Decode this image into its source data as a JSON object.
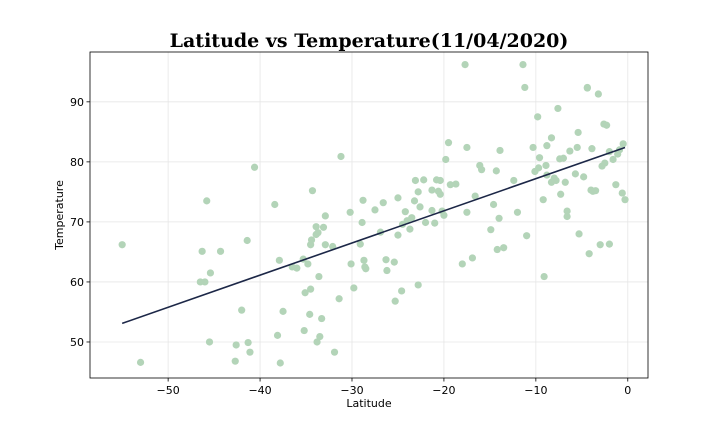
{
  "chart_data": {
    "type": "scatter",
    "title": "Latitude vs Temperature(11/04/2020)",
    "xlabel": "Latitude",
    "ylabel": "Temperature",
    "xlim": [
      -58.5,
      2.2
    ],
    "ylim": [
      44,
      98.3
    ],
    "xticks": [
      -50,
      -40,
      -30,
      -20,
      -10,
      0
    ],
    "yticks": [
      50,
      60,
      70,
      80,
      90
    ],
    "grid": true,
    "colors": {
      "points": "#b3d4b8",
      "regression": "#1c2747",
      "grid": "#e6e6e6"
    },
    "points": [
      [
        -55,
        66.2
      ],
      [
        -53,
        46.6
      ],
      [
        -46,
        60
      ],
      [
        -45.8,
        73.5
      ],
      [
        -46.3,
        65.1
      ],
      [
        -45.4,
        61.5
      ],
      [
        -45.5,
        50
      ],
      [
        -44.3,
        65.1
      ],
      [
        -46.5,
        60
      ],
      [
        -42.6,
        49.5
      ],
      [
        -42.7,
        46.8
      ],
      [
        -42,
        55.3
      ],
      [
        -41.4,
        66.9
      ],
      [
        -41.1,
        48.3
      ],
      [
        -41.3,
        49.9
      ],
      [
        -40.6,
        79.1
      ],
      [
        -38.4,
        72.9
      ],
      [
        -38.1,
        51.1
      ],
      [
        -37.8,
        46.5
      ],
      [
        -37.5,
        55.1
      ],
      [
        -37.9,
        63.6
      ],
      [
        -36.5,
        62.5
      ],
      [
        -36,
        62.3
      ],
      [
        -35.3,
        63.8
      ],
      [
        -35.1,
        58.2
      ],
      [
        -35.2,
        51.9
      ],
      [
        -34.8,
        63
      ],
      [
        -34.6,
        54.6
      ],
      [
        -34.5,
        58.8
      ],
      [
        -34.5,
        66.2
      ],
      [
        -34.3,
        75.2
      ],
      [
        -34.4,
        67
      ],
      [
        -33.9,
        67.9
      ],
      [
        -33.9,
        69.2
      ],
      [
        -33.7,
        68.2
      ],
      [
        -33.6,
        60.9
      ],
      [
        -33.8,
        50
      ],
      [
        -33.5,
        50.9
      ],
      [
        -33.3,
        53.9
      ],
      [
        -33.1,
        69.1
      ],
      [
        -32.9,
        71
      ],
      [
        -32.9,
        66.2
      ],
      [
        -32.1,
        65.9
      ],
      [
        -31.9,
        48.3
      ],
      [
        -31.4,
        57.2
      ],
      [
        -31.2,
        80.9
      ],
      [
        -30.2,
        71.6
      ],
      [
        -30.1,
        63
      ],
      [
        -29.8,
        59
      ],
      [
        -29.1,
        66.3
      ],
      [
        -28.9,
        69.9
      ],
      [
        -28.8,
        73.6
      ],
      [
        -28.7,
        63.6
      ],
      [
        -28.6,
        62.5
      ],
      [
        -28.5,
        62.2
      ],
      [
        -27.5,
        72
      ],
      [
        -26.9,
        68.3
      ],
      [
        -26.6,
        73.2
      ],
      [
        -26.3,
        63.7
      ],
      [
        -26.2,
        61.9
      ],
      [
        -25.4,
        63.3
      ],
      [
        -25.3,
        56.8
      ],
      [
        -25,
        74
      ],
      [
        -25,
        67.8
      ],
      [
        -24.6,
        58.5
      ],
      [
        -24.5,
        69.6
      ],
      [
        -24.2,
        71.7
      ],
      [
        -24,
        70.2
      ],
      [
        -23.7,
        68.8
      ],
      [
        -23.5,
        70.7
      ],
      [
        -23.2,
        73.5
      ],
      [
        -23.1,
        76.9
      ],
      [
        -22.8,
        59.5
      ],
      [
        -22.8,
        75
      ],
      [
        -22.6,
        72.5
      ],
      [
        -22.2,
        77
      ],
      [
        -22,
        69.9
      ],
      [
        -21.3,
        75.3
      ],
      [
        -21.3,
        71.9
      ],
      [
        -21,
        69.8
      ],
      [
        -20.8,
        77
      ],
      [
        -20.6,
        75.1
      ],
      [
        -20.4,
        74.6
      ],
      [
        -20.4,
        76.9
      ],
      [
        -20.2,
        71.8
      ],
      [
        -20,
        71.1
      ],
      [
        -19.8,
        80.4
      ],
      [
        -19.5,
        83.2
      ],
      [
        -19.3,
        76.2
      ],
      [
        -18.7,
        76.3
      ],
      [
        -18,
        63
      ],
      [
        -17.7,
        96.2
      ],
      [
        -17.5,
        82.4
      ],
      [
        -17.5,
        71.6
      ],
      [
        -16.9,
        64
      ],
      [
        -16.6,
        74.3
      ],
      [
        -16.1,
        79.4
      ],
      [
        -15.9,
        78.7
      ],
      [
        -14.9,
        68.7
      ],
      [
        -14.6,
        72.9
      ],
      [
        -14.3,
        78.5
      ],
      [
        -14.2,
        65.4
      ],
      [
        -14,
        70.6
      ],
      [
        -13.9,
        81.9
      ],
      [
        -13.5,
        65.7
      ],
      [
        -12.4,
        76.9
      ],
      [
        -12,
        71.6
      ],
      [
        -11.4,
        96.2
      ],
      [
        -11.2,
        92.4
      ],
      [
        -11,
        67.7
      ],
      [
        -10.3,
        82.4
      ],
      [
        -10.1,
        78.4
      ],
      [
        -9.8,
        87.5
      ],
      [
        -9.7,
        79
      ],
      [
        -9.6,
        80.7
      ],
      [
        -9.2,
        73.7
      ],
      [
        -9.1,
        60.9
      ],
      [
        -8.9,
        79.4
      ],
      [
        -8.8,
        77.8
      ],
      [
        -8.8,
        82.7
      ],
      [
        -8.3,
        84
      ],
      [
        -8.3,
        76.6
      ],
      [
        -8,
        77.3
      ],
      [
        -7.8,
        76.9
      ],
      [
        -7.6,
        88.9
      ],
      [
        -7.4,
        80.5
      ],
      [
        -7.3,
        74.6
      ],
      [
        -7,
        80.6
      ],
      [
        -6.8,
        76.6
      ],
      [
        -6.6,
        70.9
      ],
      [
        -6.6,
        71.8
      ],
      [
        -6.3,
        81.8
      ],
      [
        -5.7,
        78
      ],
      [
        -5.5,
        82.4
      ],
      [
        -5.4,
        84.9
      ],
      [
        -5.3,
        68
      ],
      [
        -4.8,
        77.5
      ],
      [
        -4.4,
        92.3
      ],
      [
        -4.4,
        92.4
      ],
      [
        -4.2,
        64.7
      ],
      [
        -4,
        75.3
      ],
      [
        -3.9,
        82.2
      ],
      [
        -3.8,
        75.1
      ],
      [
        -3.5,
        75.2
      ],
      [
        -3.2,
        91.3
      ],
      [
        -3,
        66.2
      ],
      [
        -2.8,
        79.3
      ],
      [
        -2.6,
        86.3
      ],
      [
        -2.5,
        79.8
      ],
      [
        -2.3,
        86.1
      ],
      [
        -2,
        66.3
      ],
      [
        -2,
        81.7
      ],
      [
        -1.6,
        80.4
      ],
      [
        -1.3,
        76.2
      ],
      [
        -1.1,
        81.3
      ],
      [
        -0.9,
        82
      ],
      [
        -0.6,
        74.8
      ],
      [
        -0.5,
        83
      ],
      [
        -0.3,
        73.7
      ]
    ],
    "regression": {
      "x": [
        -55,
        -0.3
      ],
      "y": [
        53.1,
        82.4
      ]
    }
  }
}
